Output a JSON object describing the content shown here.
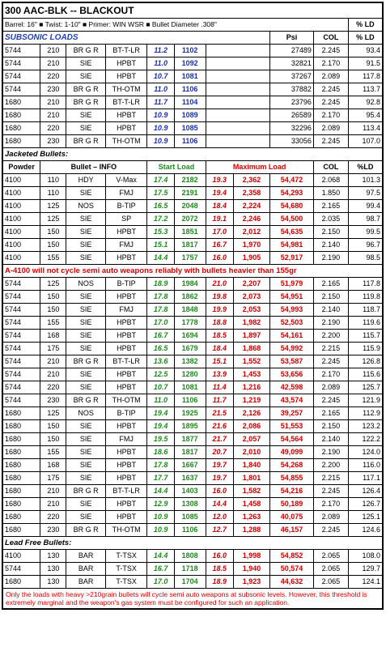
{
  "title": "300 AAC-BLK -- BLACKOUT",
  "specs": "Barrel: 16\"  ■  Twist: 1-10\"  ■  Primer: WIN WSR  ■  Bullet Diameter .308\"",
  "ld_header": "% LD",
  "subsonic": {
    "label": "SUBSONIC LOADS",
    "headers": [
      "Psi",
      "COL",
      "% LD"
    ],
    "rows": [
      [
        "5744",
        "210",
        "BR G R",
        "BT-T-LR",
        "11.2",
        "1102",
        "27489",
        "2.245",
        "93.4"
      ],
      [
        "5744",
        "210",
        "SIE",
        "HPBT",
        "11.0",
        "1092",
        "32821",
        "2.170",
        "91.5"
      ],
      [
        "5744",
        "220",
        "SIE",
        "HPBT",
        "10.7",
        "1081",
        "37267",
        "2.089",
        "117.8"
      ],
      [
        "5744",
        "230",
        "BR G R",
        "TH-OTM",
        "11.0",
        "1106",
        "37882",
        "2.245",
        "113.7"
      ],
      [
        "1680",
        "210",
        "BR G R",
        "BT-T-LR",
        "11.7",
        "1104",
        "23796",
        "2.245",
        "92.8"
      ],
      [
        "1680",
        "210",
        "SIE",
        "HPBT",
        "10.9",
        "1089",
        "26589",
        "2.170",
        "95.4"
      ],
      [
        "1680",
        "220",
        "SIE",
        "HPBT",
        "10.9",
        "1085",
        "32296",
        "2.089",
        "113.4"
      ],
      [
        "1680",
        "230",
        "BR G R",
        "TH-OTM",
        "10.9",
        "1106",
        "33056",
        "2.245",
        "107.0"
      ]
    ]
  },
  "jacketed": {
    "label": "Jacketed Bullets:",
    "headers": [
      "Powder",
      "Bullet – INFO",
      "Start Load",
      "Maximum Load",
      "COL",
      "%LD"
    ],
    "rows": [
      [
        "4100",
        "110",
        "HDY",
        "V-Max",
        "17.4",
        "2182",
        "19.3",
        "2,362",
        "54,472",
        "2.068",
        "101.3"
      ],
      [
        "4100",
        "110",
        "SIE",
        "FMJ",
        "17.5",
        "2191",
        "19.4",
        "2,358",
        "54,293",
        "1.850",
        "97.5"
      ],
      [
        "4100",
        "125",
        "NOS",
        "B-TIP",
        "16.5",
        "2048",
        "18.4",
        "2,224",
        "54,680",
        "2.165",
        "99.4"
      ],
      [
        "4100",
        "125",
        "SIE",
        "SP",
        "17.2",
        "2072",
        "19.1",
        "2,246",
        "54,500",
        "2.035",
        "98.7"
      ],
      [
        "4100",
        "150",
        "SIE",
        "HPBT",
        "15.3",
        "1851",
        "17.0",
        "2,012",
        "54,635",
        "2.150",
        "99.5"
      ],
      [
        "4100",
        "150",
        "SIE",
        "FMJ",
        "15.1",
        "1817",
        "16.7",
        "1,970",
        "54,981",
        "2.140",
        "96.7"
      ],
      [
        "4100",
        "155",
        "SIE",
        "HPBT",
        "14.4",
        "1757",
        "16.0",
        "1,905",
        "52,917",
        "2.190",
        "98.5"
      ]
    ],
    "warning": "A-4100 will not cycle semi auto weapons reliably with bullets heavier than 155gr",
    "rows2": [
      [
        "5744",
        "125",
        "NOS",
        "B-TIP",
        "18.9",
        "1984",
        "21.0",
        "2,207",
        "51,979",
        "2.165",
        "117.8"
      ],
      [
        "5744",
        "150",
        "SIE",
        "HPBT",
        "17.8",
        "1862",
        "19.8",
        "2,073",
        "54,951",
        "2.150",
        "119.8"
      ],
      [
        "5744",
        "150",
        "SIE",
        "FMJ",
        "17.8",
        "1848",
        "19.9",
        "2,053",
        "54,993",
        "2.140",
        "118.7"
      ],
      [
        "5744",
        "155",
        "SIE",
        "HPBT",
        "17.0",
        "1778",
        "18.8",
        "1,982",
        "52,503",
        "2.190",
        "119.6"
      ],
      [
        "5744",
        "168",
        "SIE",
        "HPBT",
        "16.7",
        "1694",
        "18.5",
        "1,897",
        "54,161",
        "2.200",
        "115.7"
      ],
      [
        "5744",
        "175",
        "SIE",
        "HPBT",
        "16.5",
        "1679",
        "18.4",
        "1,868",
        "54,992",
        "2.215",
        "115.9"
      ],
      [
        "5744",
        "210",
        "BR G R",
        "BT-T-LR",
        "13.6",
        "1382",
        "15.1",
        "1,552",
        "53,587",
        "2.245",
        "126.8"
      ],
      [
        "5744",
        "210",
        "SIE",
        "HPBT",
        "12.5",
        "1280",
        "13.9",
        "1,453",
        "53,656",
        "2.170",
        "115.6"
      ],
      [
        "5744",
        "220",
        "SIE",
        "HPBT",
        "10.7",
        "1081",
        "11.4",
        "1,216",
        "42,598",
        "2.089",
        "125.7"
      ],
      [
        "5744",
        "230",
        "BR G R",
        "TH-OTM",
        "11.0",
        "1106",
        "11.7",
        "1,219",
        "43,574",
        "2.245",
        "121.9"
      ],
      [
        "1680",
        "125",
        "NOS",
        "B-TIP",
        "19.4",
        "1925",
        "21.5",
        "2,126",
        "39,257",
        "2.165",
        "112.9"
      ],
      [
        "1680",
        "150",
        "SIE",
        "HPBT",
        "19.4",
        "1895",
        "21.6",
        "2,086",
        "51,553",
        "2.150",
        "123.2"
      ],
      [
        "1680",
        "150",
        "SIE",
        "FMJ",
        "19.5",
        "1877",
        "21.7",
        "2,057",
        "54,564",
        "2.140",
        "122.2"
      ],
      [
        "1680",
        "155",
        "SIE",
        "HPBT",
        "18.6",
        "1817",
        "20.7",
        "2,010",
        "49,099",
        "2.190",
        "124.0"
      ],
      [
        "1680",
        "168",
        "SIE",
        "HPBT",
        "17.8",
        "1667",
        "19.7",
        "1,840",
        "54,268",
        "2.200",
        "116.0"
      ],
      [
        "1680",
        "175",
        "SIE",
        "HPBT",
        "17.7",
        "1637",
        "19.7",
        "1,801",
        "54,855",
        "2.215",
        "117.1"
      ],
      [
        "1680",
        "210",
        "BR G R",
        "BT-T-LR",
        "14.4",
        "1403",
        "16.0",
        "1,582",
        "54,216",
        "2.245",
        "126.4"
      ],
      [
        "1680",
        "210",
        "SIE",
        "HPBT",
        "12.9",
        "1308",
        "14.4",
        "1,458",
        "50,189",
        "2.170",
        "126.7"
      ],
      [
        "1680",
        "220",
        "SIE",
        "HPBT",
        "10.9",
        "1085",
        "12.0",
        "1,263",
        "40,075",
        "2.089",
        "125.1"
      ],
      [
        "1680",
        "230",
        "BR G R",
        "TH-OTM",
        "10.9",
        "1106",
        "12.7",
        "1,288",
        "46,157",
        "2.245",
        "124.6"
      ]
    ]
  },
  "leadfree": {
    "label": "Lead Free Bullets:",
    "rows": [
      [
        "4100",
        "130",
        "BAR",
        "T-TSX",
        "14.4",
        "1808",
        "16.0",
        "1,998",
        "54,852",
        "2.065",
        "108.0"
      ],
      [
        "5744",
        "130",
        "BAR",
        "T-TSX",
        "16.7",
        "1718",
        "18.5",
        "1,940",
        "50,574",
        "2.065",
        "129.7"
      ],
      [
        "1680",
        "130",
        "BAR",
        "T-TSX",
        "17.0",
        "1704",
        "18.9",
        "1,923",
        "44,632",
        "2.065",
        "124.1"
      ]
    ]
  },
  "footnote": "Only the loads with heavy >210grain bullets will cycle semi auto weapons at subsonic levels. However, this threshold is extremely marginal and the weapon's gas system must be configured for such an application."
}
